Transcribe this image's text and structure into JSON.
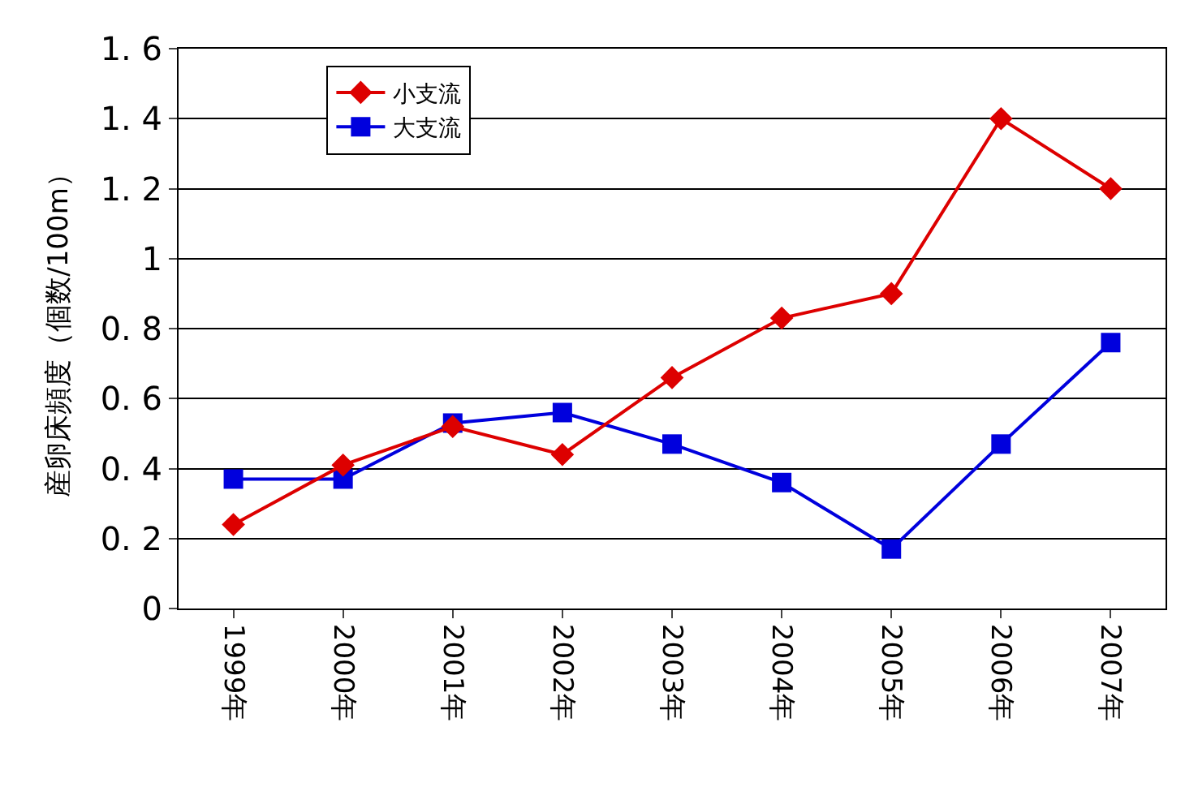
{
  "chart_data": {
    "type": "line",
    "ylabel": "産卵床頻度（個数/100m）",
    "categories": [
      "1999年",
      "2000年",
      "2001年",
      "2002年",
      "2003年",
      "2004年",
      "2005年",
      "2006年",
      "2007年"
    ],
    "series": [
      {
        "name": "小支流",
        "color": "#dd0000",
        "marker": "diamond",
        "values": [
          0.24,
          0.41,
          0.52,
          0.44,
          0.66,
          0.83,
          0.9,
          1.4,
          1.2
        ]
      },
      {
        "name": "大支流",
        "color": "#0000dd",
        "marker": "square",
        "values": [
          0.37,
          0.37,
          0.53,
          0.56,
          0.47,
          0.36,
          0.17,
          0.47,
          0.76
        ]
      }
    ],
    "ylim": [
      0,
      1.6
    ],
    "yticks": [
      0,
      {
        "value": 0.2,
        "label": "0. 2"
      },
      {
        "value": 0.4,
        "label": "0. 4"
      },
      {
        "value": 0.6,
        "label": "0. 6"
      },
      {
        "value": 0.8,
        "label": "0. 8"
      },
      1,
      {
        "value": 1.2,
        "label": "1. 2"
      },
      {
        "value": 1.4,
        "label": "1. 4"
      },
      {
        "value": 1.6,
        "label": "1. 6"
      }
    ],
    "grid": "y",
    "legend": "top left"
  }
}
